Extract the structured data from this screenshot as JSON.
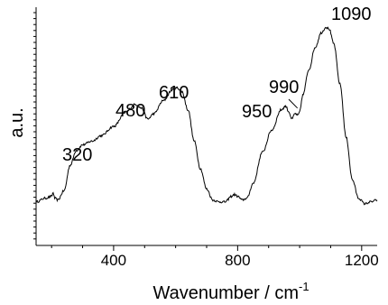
{
  "chart_data": {
    "type": "line",
    "title": "",
    "xlabel": "Wavenumber  /  cm",
    "xlabel_superscript": "-1",
    "ylabel": "a.u.",
    "xlim": [
      150,
      1250
    ],
    "ylim": [
      0,
      1.05
    ],
    "x_ticks": [
      400,
      800,
      1200
    ],
    "grid": false,
    "legend": "none",
    "series": [
      {
        "x": [
          150,
          180,
          200,
          205,
          210,
          220,
          240,
          260,
          280,
          300,
          330,
          360,
          400,
          440,
          470,
          490,
          510,
          530,
          560,
          590,
          605,
          620,
          640,
          660,
          680,
          700,
          720,
          740,
          760,
          780,
          790,
          800,
          815,
          830,
          850,
          880,
          910,
          940,
          955,
          965,
          975,
          985,
          995,
          1000,
          1010,
          1030,
          1050,
          1070,
          1085,
          1095,
          1110,
          1130,
          1150,
          1170,
          1190,
          1210,
          1230,
          1250
        ],
        "y": [
          0.08,
          0.1,
          0.11,
          0.13,
          0.1,
          0.09,
          0.14,
          0.28,
          0.36,
          0.39,
          0.41,
          0.44,
          0.49,
          0.57,
          0.61,
          0.59,
          0.53,
          0.56,
          0.63,
          0.69,
          0.7,
          0.68,
          0.58,
          0.41,
          0.26,
          0.15,
          0.09,
          0.08,
          0.08,
          0.11,
          0.12,
          0.11,
          0.09,
          0.1,
          0.18,
          0.35,
          0.47,
          0.58,
          0.6,
          0.57,
          0.53,
          0.56,
          0.55,
          0.57,
          0.66,
          0.8,
          0.92,
          1.0,
          1.03,
          1.02,
          0.94,
          0.72,
          0.43,
          0.2,
          0.1,
          0.07,
          0.08,
          0.09
        ]
      }
    ],
    "annotations": [
      {
        "text": "320",
        "x": 320,
        "y": 0.42
      },
      {
        "text": "480",
        "x": 480,
        "y": 0.62
      },
      {
        "text": "610",
        "x": 610,
        "y": 0.71
      },
      {
        "text": "950",
        "x": 950,
        "y": 0.6
      },
      {
        "text": "990",
        "x": 990,
        "y": 0.57
      },
      {
        "text": "1090",
        "x": 1090,
        "y": 1.03
      }
    ]
  }
}
